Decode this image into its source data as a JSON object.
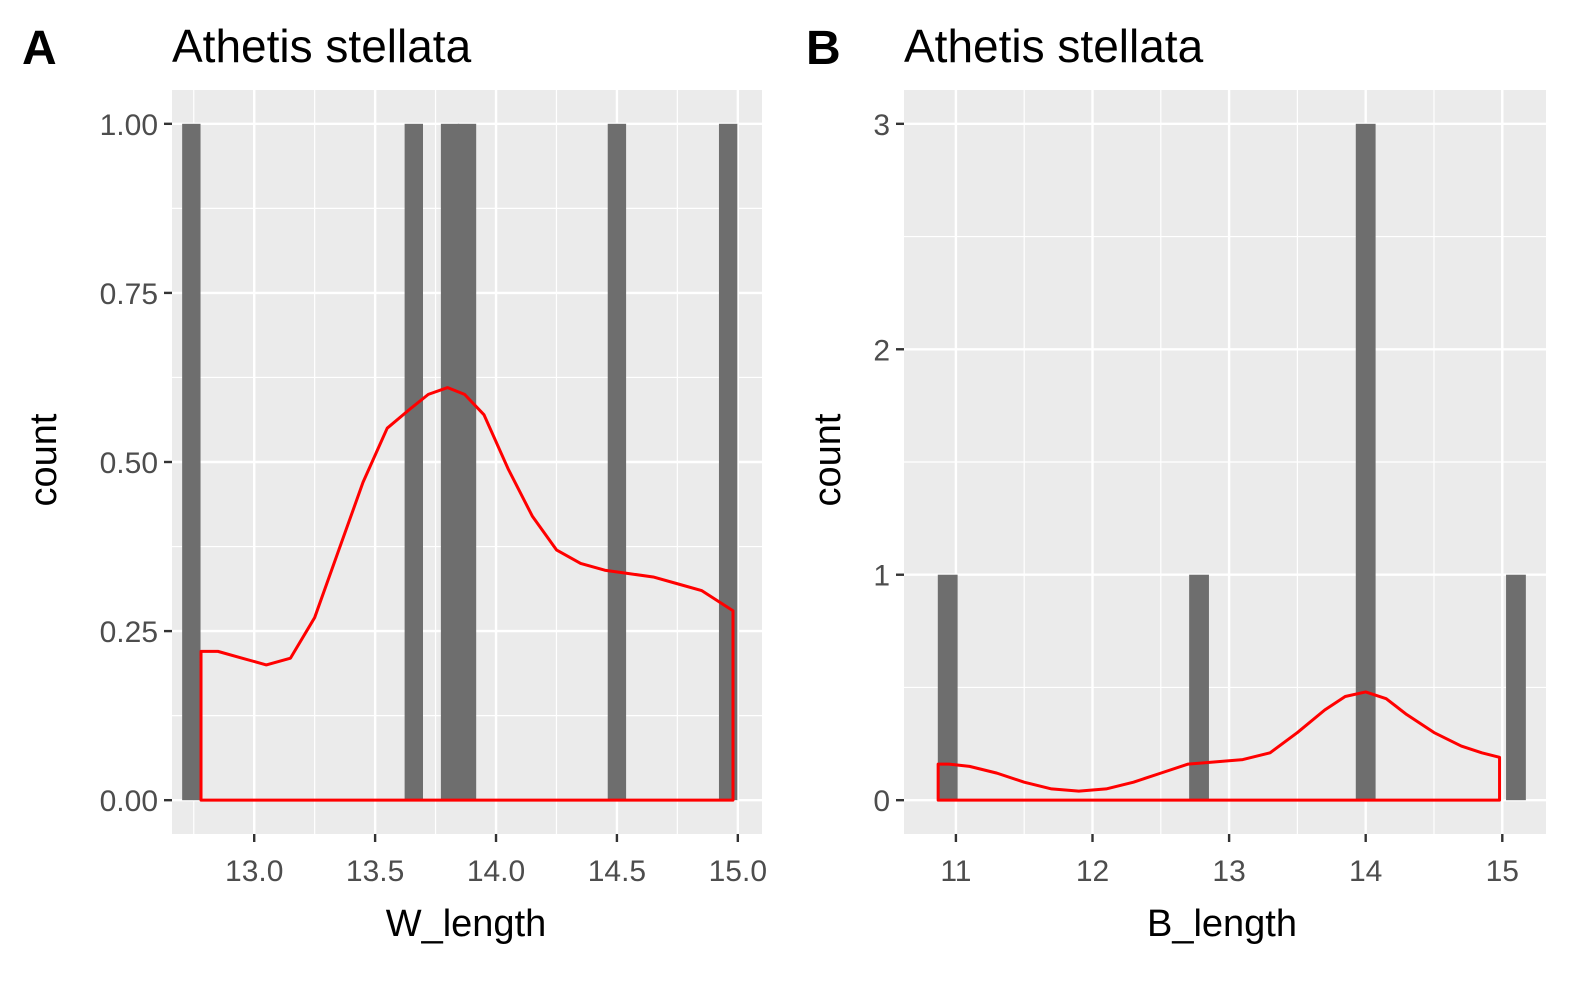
{
  "chart_data": [
    {
      "tag": "A",
      "type": "bar",
      "title": "Athetis stellata",
      "xlabel": "W_length",
      "ylabel": "count",
      "xlim": [
        12.66,
        15.1
      ],
      "ylim": [
        -0.05,
        1.05
      ],
      "xticks": [
        13.0,
        13.5,
        14.0,
        14.5,
        15.0
      ],
      "xtick_labels": [
        "13.0",
        "13.5",
        "14.0",
        "14.5",
        "15.0"
      ],
      "yticks": [
        0,
        0.25,
        0.5,
        0.75,
        1.0
      ],
      "ytick_labels": [
        "0.00",
        "0.25",
        "0.50",
        "0.75",
        "1.00"
      ],
      "bar_width": 0.076,
      "bars": [
        {
          "x": 12.74,
          "count": 1
        },
        {
          "x": 13.66,
          "count": 1
        },
        {
          "x": 13.81,
          "count": 1
        },
        {
          "x": 13.88,
          "count": 1
        },
        {
          "x": 14.5,
          "count": 1
        },
        {
          "x": 14.96,
          "count": 1
        }
      ],
      "density": {
        "x": [
          12.78,
          12.85,
          12.95,
          13.05,
          13.15,
          13.25,
          13.35,
          13.45,
          13.55,
          13.65,
          13.72,
          13.8,
          13.87,
          13.95,
          14.05,
          14.15,
          14.25,
          14.35,
          14.45,
          14.55,
          14.65,
          14.75,
          14.85,
          14.98
        ],
        "y": [
          0.22,
          0.22,
          0.21,
          0.2,
          0.21,
          0.27,
          0.37,
          0.47,
          0.55,
          0.58,
          0.6,
          0.61,
          0.6,
          0.57,
          0.49,
          0.42,
          0.37,
          0.35,
          0.34,
          0.335,
          0.33,
          0.32,
          0.31,
          0.28
        ]
      },
      "colors": {
        "bar": "#6e6e6e",
        "density": "#ff0000",
        "panel": "#ebebeb",
        "grid": "#ffffff"
      },
      "grid": true,
      "legend": "none"
    },
    {
      "tag": "B",
      "type": "bar",
      "title": "Athetis stellata",
      "xlabel": "B_length",
      "ylabel": "count",
      "xlim": [
        10.62,
        15.32
      ],
      "ylim": [
        -0.15,
        3.15
      ],
      "xticks": [
        11,
        12,
        13,
        14,
        15
      ],
      "xtick_labels": [
        "11",
        "12",
        "13",
        "14",
        "15"
      ],
      "yticks": [
        0,
        1,
        2,
        3
      ],
      "ytick_labels": [
        "0",
        "1",
        "2",
        "3"
      ],
      "bar_width": 0.145,
      "bars": [
        {
          "x": 10.94,
          "count": 1
        },
        {
          "x": 12.78,
          "count": 1
        },
        {
          "x": 14.0,
          "count": 3
        },
        {
          "x": 15.1,
          "count": 1
        }
      ],
      "density": {
        "x": [
          10.87,
          10.95,
          11.1,
          11.3,
          11.5,
          11.7,
          11.9,
          12.1,
          12.3,
          12.5,
          12.7,
          12.9,
          13.1,
          13.3,
          13.5,
          13.7,
          13.85,
          14.0,
          14.15,
          14.3,
          14.5,
          14.7,
          14.85,
          14.98
        ],
        "y": [
          0.16,
          0.16,
          0.15,
          0.12,
          0.08,
          0.05,
          0.04,
          0.05,
          0.08,
          0.12,
          0.16,
          0.17,
          0.18,
          0.21,
          0.3,
          0.4,
          0.46,
          0.48,
          0.45,
          0.38,
          0.3,
          0.24,
          0.21,
          0.19
        ]
      },
      "colors": {
        "bar": "#6e6e6e",
        "density": "#ff0000",
        "panel": "#ebebeb",
        "grid": "#ffffff"
      },
      "grid": true,
      "legend": "none"
    }
  ]
}
